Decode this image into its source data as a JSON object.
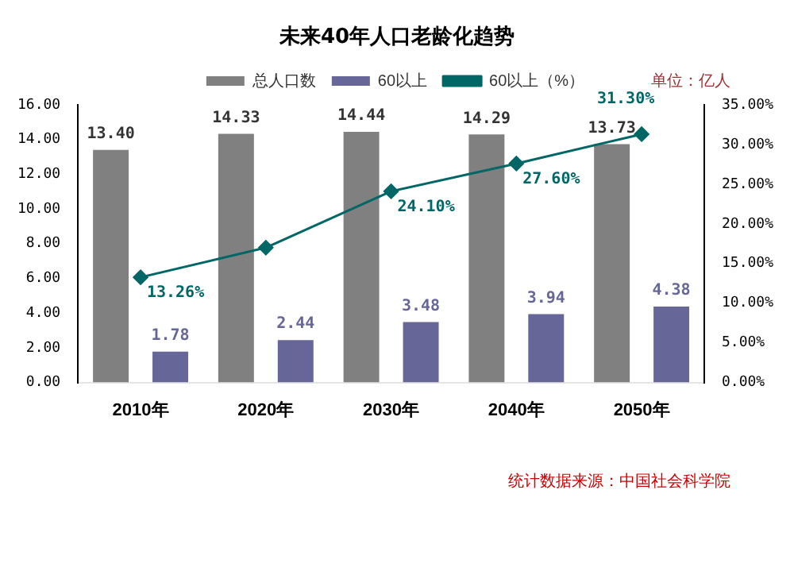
{
  "chart_data": {
    "type": "bar",
    "title": "未来40年人口老龄化趋势",
    "categories": [
      "2010年",
      "2020年",
      "2030年",
      "2040年",
      "2050年"
    ],
    "series": [
      {
        "name": "总人口数",
        "color": "#808080",
        "values": [
          13.4,
          14.33,
          14.44,
          14.29,
          13.73
        ],
        "value_labels": [
          "13.40",
          "14.33",
          "14.44",
          "14.29",
          "13.73"
        ]
      },
      {
        "name": "60以上",
        "color": "#666699",
        "values": [
          1.78,
          2.44,
          3.48,
          3.94,
          4.38
        ],
        "value_labels": [
          "1.78",
          "2.44",
          "3.48",
          "3.94",
          "4.38"
        ]
      },
      {
        "name": "60以上（%）",
        "type": "line",
        "axis": "y2",
        "color": "#006666",
        "marker": "diamond",
        "values": [
          13.26,
          17.0,
          24.1,
          27.6,
          31.3
        ],
        "value_labels": [
          "13.26%",
          null,
          "24.10%",
          "27.60%",
          "31.30%"
        ]
      }
    ],
    "ylim": [
      0,
      16
    ],
    "yticks": [
      {
        "value": 0,
        "label": "0.00"
      },
      {
        "value": 2,
        "label": "2.00"
      },
      {
        "value": 4,
        "label": "4.00"
      },
      {
        "value": 6,
        "label": "6.00"
      },
      {
        "value": 8,
        "label": "8.00"
      },
      {
        "value": 10,
        "label": "10.00"
      },
      {
        "value": 12,
        "label": "12.00"
      },
      {
        "value": 14,
        "label": "14.00"
      },
      {
        "value": 16,
        "label": "16.00"
      }
    ],
    "y2lim": [
      0,
      35
    ],
    "y2ticks": [
      {
        "value": 0,
        "label": "0.00%"
      },
      {
        "value": 5,
        "label": "5.00%"
      },
      {
        "value": 10,
        "label": "10.00%"
      },
      {
        "value": 15,
        "label": "15.00%"
      },
      {
        "value": 20,
        "label": "20.00%"
      },
      {
        "value": 25,
        "label": "25.00%"
      },
      {
        "value": 30,
        "label": "30.00%"
      },
      {
        "value": 35,
        "label": "35.00%"
      }
    ],
    "legend": "top",
    "grid": false,
    "annotations": [
      "单位：亿人",
      "统计数据来源：中国社会科学院"
    ]
  }
}
